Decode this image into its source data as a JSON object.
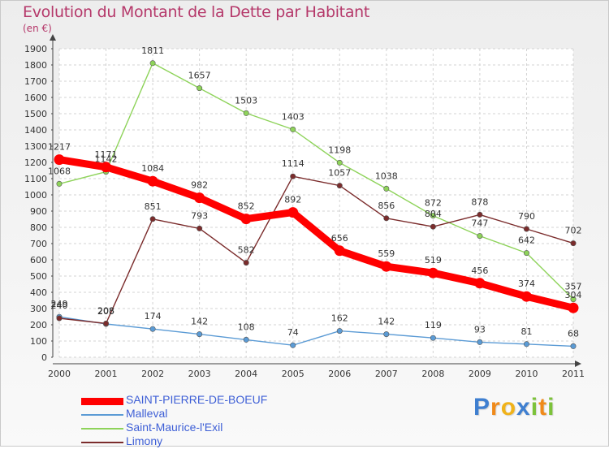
{
  "chart_data": {
    "type": "line",
    "title": "Evolution du Montant de la Dette par Habitant",
    "subtitle": "(en €)",
    "x": [
      "2000",
      "2001",
      "2002",
      "2003",
      "2004",
      "2005",
      "2006",
      "2007",
      "2008",
      "2009",
      "2010",
      "2011"
    ],
    "ylim": [
      0,
      1900
    ],
    "yticks": [
      0,
      100,
      200,
      300,
      400,
      500,
      600,
      700,
      800,
      900,
      1000,
      1100,
      1200,
      1300,
      1400,
      1500,
      1600,
      1700,
      1800,
      1900
    ],
    "grid": true,
    "legend_position": "bottom-left",
    "series": [
      {
        "name": "SAINT-PIERRE-DE-BOEUF",
        "color": "#ff0000",
        "values": [
          1217,
          1171,
          1084,
          982,
          852,
          892,
          656,
          559,
          519,
          456,
          374,
          304
        ]
      },
      {
        "name": "Malleval",
        "color": "#5b9bd5",
        "values": [
          249,
          205,
          174,
          142,
          108,
          74,
          162,
          142,
          119,
          93,
          81,
          68
        ]
      },
      {
        "name": "Saint-Maurice-l'Exil",
        "color": "#8ed35a",
        "values": [
          1068,
          1142,
          1811,
          1657,
          1503,
          1403,
          1198,
          1038,
          872,
          747,
          642,
          357
        ]
      },
      {
        "name": "Limony",
        "color": "#7b2c2c",
        "values": [
          240,
          208,
          851,
          793,
          582,
          1114,
          1057,
          856,
          804,
          878,
          790,
          702
        ]
      }
    ]
  },
  "logo": {
    "letters": [
      "P",
      "r",
      "o",
      "x",
      "i",
      "t",
      "i"
    ],
    "colors": [
      "#3f7fd0",
      "#f08a1a",
      "#f0b21a",
      "#3f7fd0",
      "#7cc23a",
      "#f08a1a",
      "#7cc23a"
    ]
  }
}
